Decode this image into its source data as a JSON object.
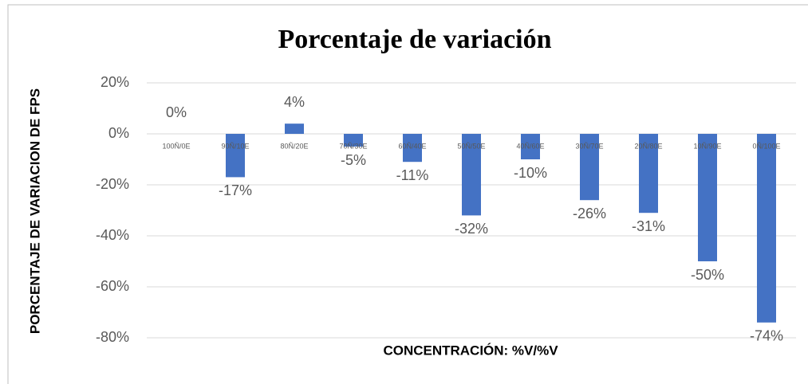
{
  "chart_data": {
    "type": "bar",
    "title": "Porcentaje de variación",
    "x_label": "CONCENTRACIÓN: %V/%V",
    "y_label": "PORCENTAJE DE VARIACION DE FPS",
    "categories": [
      "100Ñ/0E",
      "90Ñ/10E",
      "80Ñ/20E",
      "70Ñ/30E",
      "60Ñ/40E",
      "50Ñ/50E",
      "40Ñ/60E",
      "30Ñ/70E",
      "20Ñ/80E",
      "10Ñ/90E",
      "0Ñ/100E"
    ],
    "values": [
      0,
      -17,
      4,
      -5,
      -11,
      -32,
      -10,
      -26,
      -31,
      -50,
      -74
    ],
    "value_labels": [
      "0%",
      "-17%",
      "4%",
      "-5%",
      "-11%",
      "-32%",
      "-10%",
      "-26%",
      "-31%",
      "-50%",
      "-74%"
    ],
    "color": "#4472c4",
    "ylim": [
      -80,
      20
    ],
    "yticks": [
      {
        "value": 20,
        "label": "20%"
      },
      {
        "value": 0,
        "label": "0%"
      },
      {
        "value": -20,
        "label": "-20%"
      },
      {
        "value": -40,
        "label": "-40%"
      },
      {
        "value": -60,
        "label": "-60%"
      },
      {
        "value": -80,
        "label": "-80%"
      }
    ],
    "grid": true
  }
}
